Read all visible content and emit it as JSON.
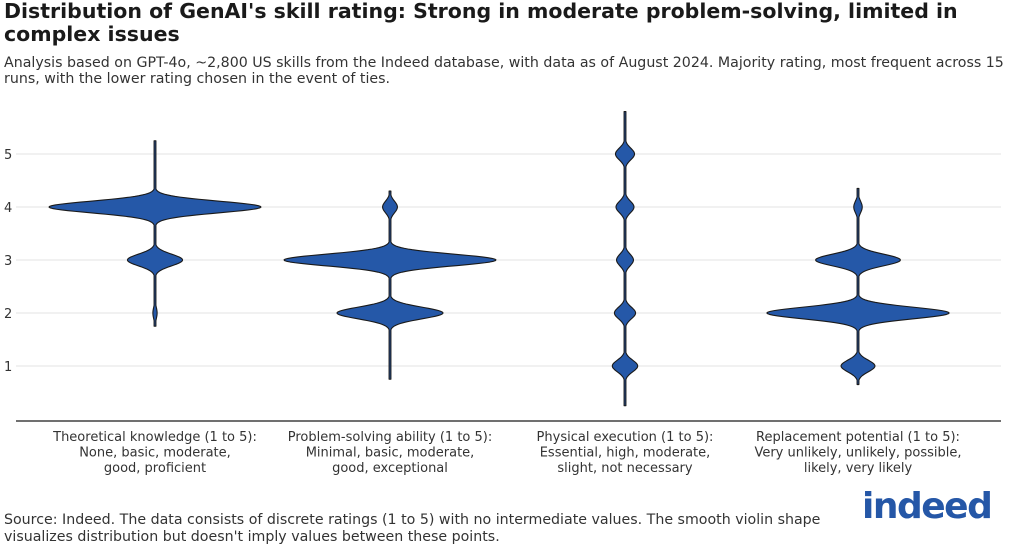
{
  "title": "Distribution of GenAI's skill rating: Strong in moderate problem-solving, limited in complex issues",
  "subtitle": "Analysis based on GPT-4o, ~2,800 US skills from the Indeed database, with data as of August 2024. Majority rating, most frequent across 15 runs, with the lower rating chosen in the event of ties.",
  "source": "Source: Indeed. The data consists of discrete ratings (1 to 5) with no intermediate values. The smooth violin shape visualizes distribution but doesn't imply values between these points.",
  "logo_text": "indeed",
  "colors": {
    "violin_fill": "#2558a8",
    "violin_stroke": "#1a1a1a",
    "grid": "#e3e3e3",
    "brand": "#2557a7"
  },
  "chart_data": {
    "type": "violin",
    "ylim": [
      0.2,
      5.8
    ],
    "yticks": [
      1,
      2,
      3,
      4,
      5
    ],
    "grid": true,
    "categories": [
      {
        "label_lines": [
          "Theoretical knowledge (1 to 5):",
          "None, basic, moderate,",
          "good, proficient"
        ],
        "range": [
          1.75,
          5.25
        ],
        "density": [
          {
            "y": 1,
            "w": 0.0
          },
          {
            "y": 2,
            "w": 0.02
          },
          {
            "y": 3,
            "w": 0.26
          },
          {
            "y": 4,
            "w": 1.0
          },
          {
            "y": 5,
            "w": 0.0
          }
        ]
      },
      {
        "label_lines": [
          "Problem-solving ability (1 to 5):",
          "Minimal, basic, moderate,",
          "good, exceptional"
        ],
        "range": [
          0.75,
          4.3
        ],
        "density": [
          {
            "y": 1,
            "w": 0.0
          },
          {
            "y": 2,
            "w": 0.5
          },
          {
            "y": 3,
            "w": 1.0
          },
          {
            "y": 4,
            "w": 0.07
          },
          {
            "y": 5,
            "w": 0.0
          }
        ]
      },
      {
        "label_lines": [
          "Physical execution (1 to 5):",
          "Essential, high, moderate,",
          "slight, not necessary"
        ],
        "range": [
          0.25,
          5.8
        ],
        "density": [
          {
            "y": 1,
            "w": 0.12
          },
          {
            "y": 2,
            "w": 0.1
          },
          {
            "y": 3,
            "w": 0.08
          },
          {
            "y": 4,
            "w": 0.085
          },
          {
            "y": 5,
            "w": 0.09
          }
        ]
      },
      {
        "label_lines": [
          "Replacement potential (1 to 5):",
          "Very unlikely, unlikely, possible,",
          "likely, very likely"
        ],
        "range": [
          0.65,
          4.35
        ],
        "density": [
          {
            "y": 1,
            "w": 0.16
          },
          {
            "y": 2,
            "w": 0.86
          },
          {
            "y": 3,
            "w": 0.4
          },
          {
            "y": 4,
            "w": 0.04
          },
          {
            "y": 5,
            "w": 0.0
          }
        ]
      }
    ]
  }
}
